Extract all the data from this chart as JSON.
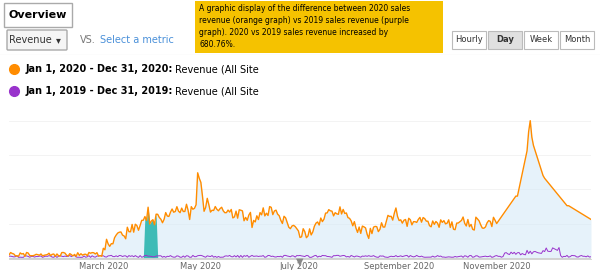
{
  "title": "Overview",
  "tooltip_text": "A graphic display of the difference between 2020 sales\nrevenue (orange graph) vs 2019 sales revenue (purple\ngraph). 2020 vs 2019 sales revenue increased by\n680.76%.",
  "tooltip_bg": "#F5C200",
  "legend_2020_label": "Jan 1, 2020 - Dec 31, 2020:",
  "legend_2019_label": "Jan 1, 2019 - Dec 31, 2019:",
  "revenue_label": "Revenue (All Site",
  "time_buttons": [
    "Hourly",
    "Day",
    "Week",
    "Month"
  ],
  "active_button": "Day",
  "metric_label": "Revenue",
  "vs_label": "VS.",
  "select_label": "Select a metric",
  "xlabel_ticks": [
    "March 2020",
    "May 2020",
    "July 2020",
    "September 2020",
    "November 2020"
  ],
  "orange_color": "#FF8C00",
  "purple_color": "#9933CC",
  "fill_color": "#D6EAF8",
  "bg_color": "#FFFFFF",
  "border_color": "#CCCCCC",
  "axis_color": "#CCCCCC",
  "tab_border": "#CCCCCC",
  "button_active_bg": "#E0E0E0",
  "text_dark": "#333333",
  "text_blue": "#4A90D9",
  "text_vs": "#777777"
}
